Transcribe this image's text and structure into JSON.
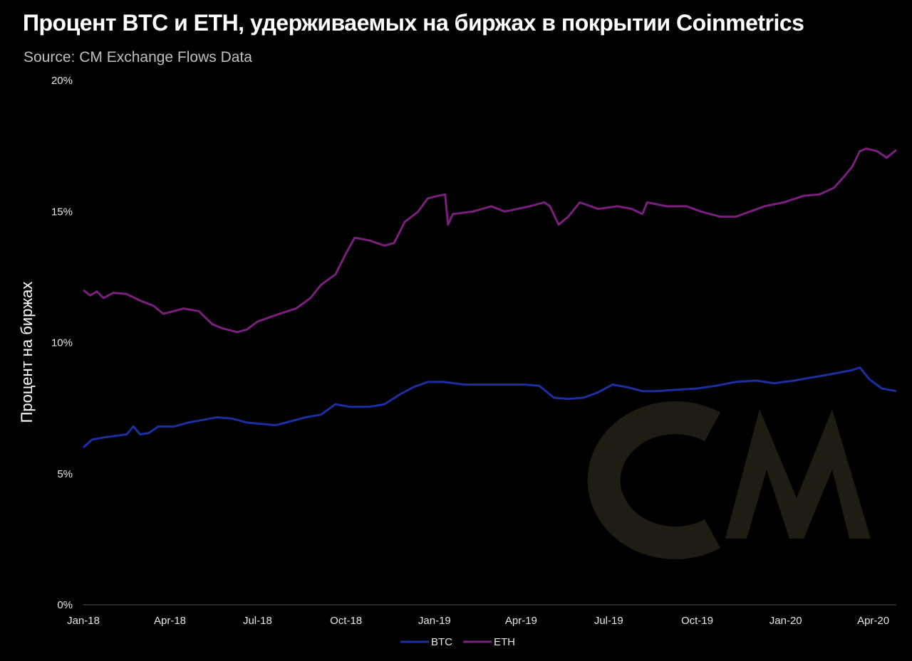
{
  "header": {
    "title": "Процент BTC и ETH, удерживаемых на биржах в покрытии Coinmetrics",
    "subtitle": "Source: CM Exchange Flows Data"
  },
  "colors": {
    "background": "#000000",
    "btc": "#1b2fa0",
    "eth": "#7a1f7d",
    "watermark": "#1f1c14"
  },
  "watermark_text": "CM",
  "chart_data": {
    "type": "line",
    "ylabel": "Процент на биржах",
    "xlabel": "",
    "ylim": [
      0,
      20
    ],
    "y_ticks": [
      "0%",
      "5%",
      "10%",
      "15%",
      "20%"
    ],
    "x_ticks": [
      "Jan-18",
      "Apr-18",
      "Jul-18",
      "Oct-18",
      "Jan-19",
      "Apr-19",
      "Jul-19",
      "Oct-19",
      "Jan-20",
      "Apr-20"
    ],
    "grid": false,
    "legend_position": "bottom",
    "series": [
      {
        "name": "BTC",
        "color": "#1b2fa0",
        "points": [
          [
            "2018-01-01",
            6.0
          ],
          [
            "2018-01-10",
            6.3
          ],
          [
            "2018-01-25",
            6.4
          ],
          [
            "2018-02-05",
            6.45
          ],
          [
            "2018-02-15",
            6.5
          ],
          [
            "2018-02-22",
            6.8
          ],
          [
            "2018-03-01",
            6.5
          ],
          [
            "2018-03-10",
            6.55
          ],
          [
            "2018-03-20",
            6.8
          ],
          [
            "2018-04-05",
            6.8
          ],
          [
            "2018-04-20",
            6.95
          ],
          [
            "2018-05-05",
            7.05
          ],
          [
            "2018-05-20",
            7.15
          ],
          [
            "2018-06-05",
            7.1
          ],
          [
            "2018-06-20",
            6.95
          ],
          [
            "2018-07-05",
            6.9
          ],
          [
            "2018-07-20",
            6.85
          ],
          [
            "2018-08-05",
            7.0
          ],
          [
            "2018-08-20",
            7.15
          ],
          [
            "2018-09-05",
            7.25
          ],
          [
            "2018-09-20",
            7.65
          ],
          [
            "2018-10-05",
            7.55
          ],
          [
            "2018-10-25",
            7.55
          ],
          [
            "2018-11-10",
            7.65
          ],
          [
            "2018-11-25",
            8.0
          ],
          [
            "2018-12-10",
            8.3
          ],
          [
            "2018-12-25",
            8.5
          ],
          [
            "2019-01-10",
            8.5
          ],
          [
            "2019-02-01",
            8.4
          ],
          [
            "2019-02-20",
            8.4
          ],
          [
            "2019-03-15",
            8.4
          ],
          [
            "2019-04-05",
            8.4
          ],
          [
            "2019-04-20",
            8.35
          ],
          [
            "2019-05-05",
            7.9
          ],
          [
            "2019-05-20",
            7.85
          ],
          [
            "2019-06-05",
            7.9
          ],
          [
            "2019-06-20",
            8.1
          ],
          [
            "2019-07-05",
            8.4
          ],
          [
            "2019-07-20",
            8.3
          ],
          [
            "2019-08-05",
            8.15
          ],
          [
            "2019-08-20",
            8.15
          ],
          [
            "2019-09-10",
            8.2
          ],
          [
            "2019-10-01",
            8.25
          ],
          [
            "2019-10-20",
            8.35
          ],
          [
            "2019-11-10",
            8.5
          ],
          [
            "2019-12-01",
            8.55
          ],
          [
            "2019-12-20",
            8.45
          ],
          [
            "2020-01-10",
            8.55
          ],
          [
            "2020-01-25",
            8.65
          ],
          [
            "2020-02-10",
            8.75
          ],
          [
            "2020-02-25",
            8.85
          ],
          [
            "2020-03-10",
            8.95
          ],
          [
            "2020-03-18",
            9.05
          ],
          [
            "2020-03-28",
            8.6
          ],
          [
            "2020-04-10",
            8.25
          ],
          [
            "2020-04-25",
            8.15
          ]
        ]
      },
      {
        "name": "ETH",
        "color": "#7a1f7d",
        "points": [
          [
            "2018-01-01",
            12.0
          ],
          [
            "2018-01-08",
            11.8
          ],
          [
            "2018-01-15",
            11.95
          ],
          [
            "2018-01-22",
            11.7
          ],
          [
            "2018-02-01",
            11.9
          ],
          [
            "2018-02-15",
            11.85
          ],
          [
            "2018-03-01",
            11.6
          ],
          [
            "2018-03-15",
            11.4
          ],
          [
            "2018-03-25",
            11.1
          ],
          [
            "2018-04-05",
            11.2
          ],
          [
            "2018-04-15",
            11.3
          ],
          [
            "2018-05-01",
            11.2
          ],
          [
            "2018-05-15",
            10.7
          ],
          [
            "2018-05-25",
            10.55
          ],
          [
            "2018-06-10",
            10.4
          ],
          [
            "2018-06-20",
            10.5
          ],
          [
            "2018-07-01",
            10.8
          ],
          [
            "2018-07-20",
            11.05
          ],
          [
            "2018-08-10",
            11.3
          ],
          [
            "2018-08-25",
            11.7
          ],
          [
            "2018-09-05",
            12.2
          ],
          [
            "2018-09-20",
            12.6
          ],
          [
            "2018-10-01",
            13.4
          ],
          [
            "2018-10-10",
            14.0
          ],
          [
            "2018-10-25",
            13.9
          ],
          [
            "2018-11-10",
            13.7
          ],
          [
            "2018-11-20",
            13.8
          ],
          [
            "2018-12-01",
            14.6
          ],
          [
            "2018-12-15",
            15.0
          ],
          [
            "2018-12-25",
            15.5
          ],
          [
            "2019-01-05",
            15.6
          ],
          [
            "2019-01-12",
            15.65
          ],
          [
            "2019-01-15",
            14.5
          ],
          [
            "2019-01-20",
            14.9
          ],
          [
            "2019-02-10",
            15.0
          ],
          [
            "2019-03-01",
            15.2
          ],
          [
            "2019-03-15",
            15.0
          ],
          [
            "2019-04-10",
            15.2
          ],
          [
            "2019-04-25",
            15.35
          ],
          [
            "2019-05-01",
            15.2
          ],
          [
            "2019-05-10",
            14.5
          ],
          [
            "2019-05-20",
            14.8
          ],
          [
            "2019-06-01",
            15.35
          ],
          [
            "2019-06-20",
            15.1
          ],
          [
            "2019-07-10",
            15.2
          ],
          [
            "2019-07-25",
            15.1
          ],
          [
            "2019-08-05",
            14.9
          ],
          [
            "2019-08-10",
            15.35
          ],
          [
            "2019-08-30",
            15.2
          ],
          [
            "2019-09-20",
            15.2
          ],
          [
            "2019-10-05",
            15.0
          ],
          [
            "2019-10-25",
            14.8
          ],
          [
            "2019-11-10",
            14.8
          ],
          [
            "2019-11-25",
            15.0
          ],
          [
            "2019-12-10",
            15.2
          ],
          [
            "2019-12-30",
            15.35
          ],
          [
            "2020-01-20",
            15.6
          ],
          [
            "2020-02-05",
            15.65
          ],
          [
            "2020-02-20",
            15.9
          ],
          [
            "2020-03-01",
            16.3
          ],
          [
            "2020-03-10",
            16.7
          ],
          [
            "2020-03-18",
            17.3
          ],
          [
            "2020-03-25",
            17.4
          ],
          [
            "2020-04-05",
            17.3
          ],
          [
            "2020-04-15",
            17.05
          ],
          [
            "2020-04-25",
            17.35
          ]
        ]
      }
    ]
  }
}
